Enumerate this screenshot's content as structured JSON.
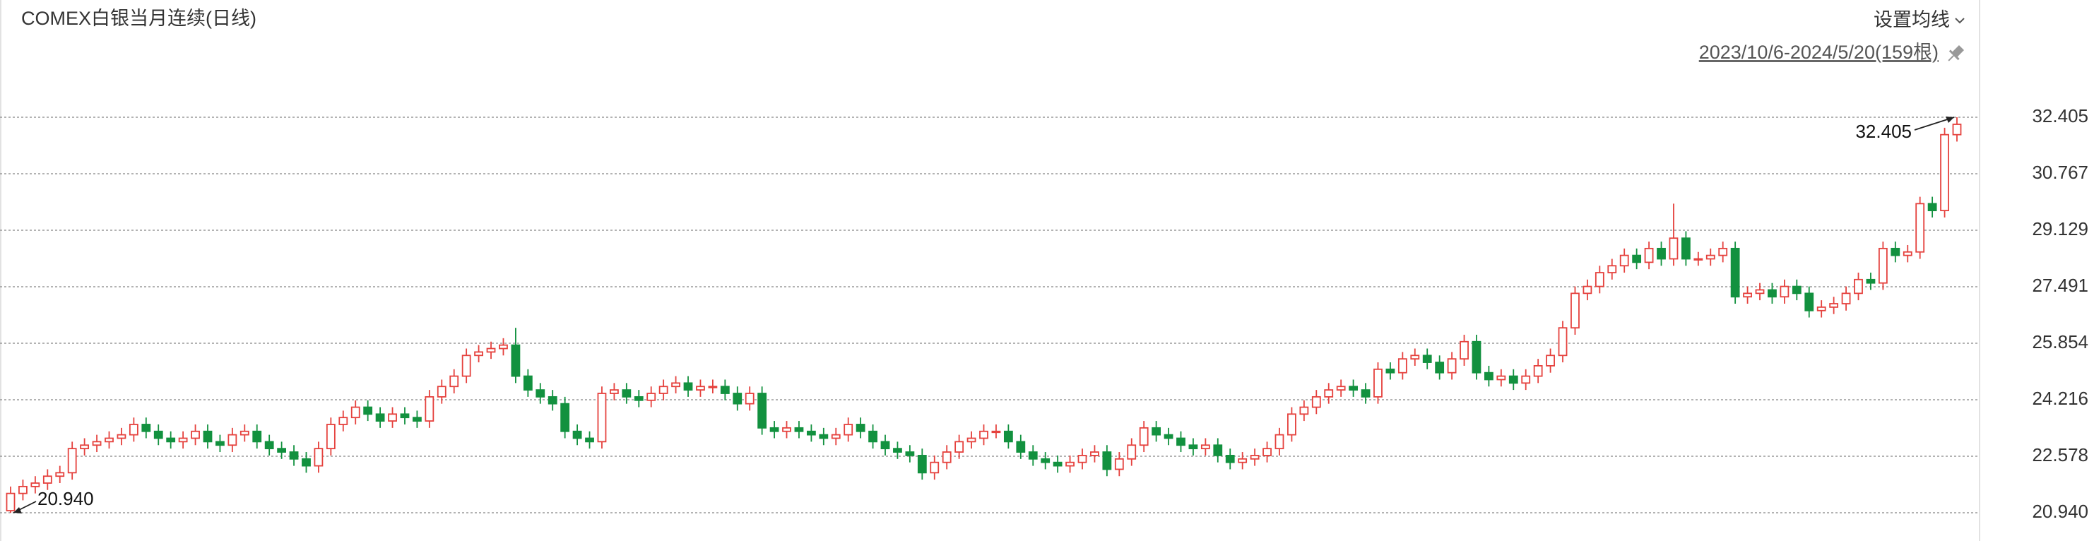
{
  "chart_data": {
    "type": "candlestick",
    "title": "COMEX白银当月连续(日线)",
    "menu": "设置均线",
    "range": "2023/10/6-2024/5/20(159根)",
    "max_label": "32.405",
    "min_label": "20.940",
    "up_color": "#e5413d",
    "down_color": "#12913f",
    "grid": true,
    "ylim": [
      20.94,
      32.405
    ],
    "yticks": [
      {
        "value": 20.94,
        "label": "20.940"
      },
      22.578,
      24.216,
      25.854,
      27.491,
      29.129,
      30.767,
      32.405
    ],
    "open": [
      21.0,
      21.5,
      21.7,
      21.8,
      22.0,
      22.1,
      22.8,
      22.9,
      23.0,
      23.1,
      23.2,
      23.5,
      23.3,
      23.1,
      23.0,
      23.1,
      23.3,
      23.0,
      22.9,
      23.2,
      23.3,
      23.0,
      22.8,
      22.7,
      22.5,
      22.3,
      22.8,
      23.5,
      23.7,
      24.0,
      23.8,
      23.6,
      23.8,
      23.7,
      23.6,
      24.3,
      24.6,
      24.9,
      25.5,
      25.6,
      25.7,
      25.8,
      24.9,
      24.5,
      24.3,
      24.1,
      23.3,
      23.1,
      23.0,
      24.4,
      24.5,
      24.3,
      24.2,
      24.4,
      24.6,
      24.7,
      24.5,
      24.6,
      24.6,
      24.4,
      24.1,
      24.4,
      23.4,
      23.3,
      23.4,
      23.3,
      23.2,
      23.1,
      23.2,
      23.5,
      23.3,
      23.0,
      22.8,
      22.7,
      22.6,
      22.1,
      22.4,
      22.7,
      23.0,
      23.1,
      23.3,
      23.3,
      23.0,
      22.7,
      22.5,
      22.4,
      22.3,
      22.4,
      22.6,
      22.7,
      22.2,
      22.5,
      22.9,
      23.4,
      23.2,
      23.1,
      22.9,
      22.8,
      22.9,
      22.6,
      22.4,
      22.5,
      22.6,
      22.8,
      23.2,
      23.8,
      24.0,
      24.3,
      24.5,
      24.6,
      24.5,
      24.3,
      25.1,
      25.0,
      25.4,
      25.5,
      25.3,
      25.0,
      25.4,
      25.9,
      25.0,
      24.8,
      24.9,
      24.7,
      24.9,
      25.2,
      25.5,
      26.3,
      27.3,
      27.5,
      27.9,
      28.1,
      28.4,
      28.2,
      28.6,
      28.3,
      28.9,
      28.3,
      28.3,
      28.4,
      28.6,
      27.2,
      27.3,
      27.4,
      27.2,
      27.5,
      27.3,
      26.8,
      26.9,
      27.0,
      27.3,
      27.7,
      27.6,
      28.6,
      28.4,
      28.5,
      29.9,
      29.7,
      31.9
    ],
    "high": [
      21.7,
      21.9,
      22.0,
      22.2,
      22.3,
      23.0,
      23.1,
      23.2,
      23.3,
      23.4,
      23.7,
      23.7,
      23.5,
      23.3,
      23.3,
      23.5,
      23.5,
      23.2,
      23.4,
      23.5,
      23.5,
      23.2,
      23.0,
      22.9,
      22.7,
      23.0,
      23.7,
      23.9,
      24.2,
      24.2,
      24.0,
      24.0,
      24.0,
      23.9,
      24.5,
      24.8,
      25.1,
      25.7,
      25.8,
      25.9,
      26.0,
      26.3,
      25.1,
      24.7,
      24.5,
      24.3,
      23.5,
      23.3,
      24.6,
      24.7,
      24.7,
      24.5,
      24.6,
      24.8,
      24.9,
      24.9,
      24.8,
      24.8,
      24.8,
      24.6,
      24.6,
      24.6,
      23.6,
      23.6,
      23.6,
      23.5,
      23.4,
      23.4,
      23.7,
      23.7,
      23.5,
      23.2,
      23.0,
      22.9,
      22.8,
      22.6,
      22.9,
      23.2,
      23.3,
      23.5,
      23.5,
      23.5,
      23.2,
      22.9,
      22.7,
      22.6,
      22.6,
      22.8,
      22.9,
      22.9,
      22.7,
      23.1,
      23.6,
      23.6,
      23.4,
      23.3,
      23.1,
      23.1,
      23.1,
      22.8,
      22.7,
      22.8,
      23.0,
      23.4,
      24.0,
      24.2,
      24.5,
      24.7,
      24.8,
      24.8,
      24.7,
      25.3,
      25.3,
      25.6,
      25.7,
      25.7,
      25.5,
      25.6,
      26.1,
      26.1,
      25.2,
      25.1,
      25.1,
      25.1,
      25.4,
      25.7,
      26.5,
      27.5,
      27.7,
      28.1,
      28.3,
      28.6,
      28.6,
      28.8,
      28.8,
      29.9,
      29.1,
      28.5,
      28.6,
      28.8,
      28.8,
      27.5,
      27.6,
      27.6,
      27.7,
      27.7,
      27.5,
      27.1,
      27.2,
      27.5,
      27.9,
      27.9,
      28.8,
      28.8,
      28.7,
      30.1,
      30.1,
      32.1,
      32.405
    ],
    "low": [
      20.94,
      21.3,
      21.5,
      21.6,
      21.8,
      21.9,
      22.6,
      22.7,
      22.8,
      22.9,
      23.0,
      23.1,
      22.9,
      22.8,
      22.8,
      22.9,
      22.8,
      22.7,
      22.7,
      23.0,
      22.8,
      22.6,
      22.5,
      22.3,
      22.1,
      22.1,
      22.6,
      23.3,
      23.5,
      23.6,
      23.4,
      23.4,
      23.5,
      23.4,
      23.4,
      24.1,
      24.4,
      24.7,
      25.3,
      25.4,
      25.5,
      24.7,
      24.3,
      24.1,
      23.9,
      23.1,
      22.9,
      22.8,
      22.8,
      24.2,
      24.1,
      24.0,
      24.0,
      24.2,
      24.4,
      24.3,
      24.3,
      24.4,
      24.2,
      23.9,
      23.9,
      23.2,
      23.1,
      23.1,
      23.1,
      23.0,
      22.9,
      22.9,
      23.0,
      23.1,
      22.8,
      22.6,
      22.5,
      22.4,
      21.9,
      21.9,
      22.2,
      22.5,
      22.8,
      22.9,
      23.1,
      22.8,
      22.5,
      22.3,
      22.2,
      22.1,
      22.1,
      22.2,
      22.4,
      22.0,
      22.0,
      22.3,
      22.7,
      23.0,
      22.9,
      22.7,
      22.6,
      22.6,
      22.4,
      22.2,
      22.2,
      22.3,
      22.4,
      22.6,
      23.0,
      23.6,
      23.8,
      24.1,
      24.3,
      24.3,
      24.1,
      24.1,
      24.8,
      24.8,
      25.2,
      25.1,
      24.8,
      24.8,
      25.2,
      24.8,
      24.6,
      24.6,
      24.5,
      24.5,
      24.7,
      25.0,
      25.3,
      26.1,
      27.1,
      27.3,
      27.7,
      27.9,
      28.0,
      28.0,
      28.1,
      28.1,
      28.1,
      28.1,
      28.1,
      28.2,
      27.0,
      27.0,
      27.1,
      27.0,
      27.0,
      27.1,
      26.6,
      26.6,
      26.7,
      26.8,
      27.1,
      27.4,
      27.4,
      28.2,
      28.2,
      28.3,
      29.5,
      29.5,
      31.7
    ],
    "close": [
      21.5,
      21.7,
      21.8,
      22.0,
      22.1,
      22.8,
      22.9,
      23.0,
      23.1,
      23.2,
      23.5,
      23.3,
      23.1,
      23.0,
      23.1,
      23.3,
      23.0,
      22.9,
      23.2,
      23.3,
      23.0,
      22.8,
      22.7,
      22.5,
      22.3,
      22.8,
      23.5,
      23.7,
      24.0,
      23.8,
      23.6,
      23.8,
      23.7,
      23.6,
      24.3,
      24.6,
      24.9,
      25.5,
      25.6,
      25.7,
      25.8,
      24.9,
      24.5,
      24.3,
      24.1,
      23.3,
      23.1,
      23.0,
      24.4,
      24.5,
      24.3,
      24.2,
      24.4,
      24.6,
      24.7,
      24.5,
      24.6,
      24.6,
      24.4,
      24.1,
      24.4,
      23.4,
      23.3,
      23.4,
      23.3,
      23.2,
      23.1,
      23.2,
      23.5,
      23.3,
      23.0,
      22.8,
      22.7,
      22.6,
      22.1,
      22.4,
      22.7,
      23.0,
      23.1,
      23.3,
      23.3,
      23.0,
      22.7,
      22.5,
      22.4,
      22.3,
      22.4,
      22.6,
      22.7,
      22.2,
      22.5,
      22.9,
      23.4,
      23.2,
      23.1,
      22.9,
      22.8,
      22.9,
      22.6,
      22.4,
      22.5,
      22.6,
      22.8,
      23.2,
      23.8,
      24.0,
      24.3,
      24.5,
      24.6,
      24.5,
      24.3,
      25.1,
      25.0,
      25.4,
      25.5,
      25.3,
      25.0,
      25.4,
      25.9,
      25.0,
      24.8,
      24.9,
      24.7,
      24.9,
      25.2,
      25.5,
      26.3,
      27.3,
      27.5,
      27.9,
      28.1,
      28.4,
      28.2,
      28.6,
      28.3,
      28.9,
      28.3,
      28.3,
      28.4,
      28.6,
      27.2,
      27.3,
      27.4,
      27.2,
      27.5,
      27.3,
      26.8,
      26.9,
      27.0,
      27.3,
      27.7,
      27.6,
      28.6,
      28.4,
      28.5,
      29.9,
      29.7,
      31.9,
      32.2
    ]
  }
}
